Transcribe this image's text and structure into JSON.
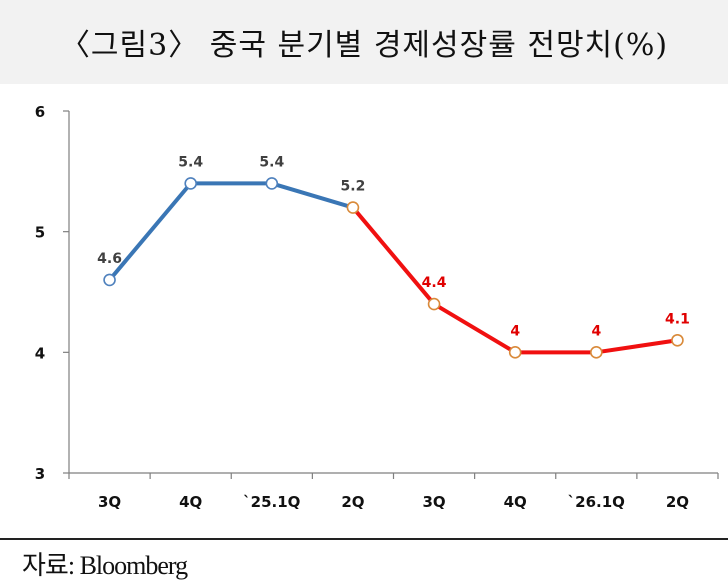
{
  "title": "〈그림3〉 중국 분기별 경제성장률 전망치(%)",
  "source": "자료: Bloomberg",
  "colors": {
    "history_line": "#3a76b5",
    "forecast_line": "#f01010",
    "history_marker": "#4f81bd",
    "forecast_marker": "#d98a3a",
    "history_label": "#404040",
    "forecast_label": "#e00000",
    "axis": "#7f7f7f"
  },
  "chart_data": {
    "type": "line",
    "categories": [
      "3Q",
      "4Q",
      "`25.1Q",
      "2Q",
      "3Q",
      "4Q",
      "`26.1Q",
      "2Q"
    ],
    "values": [
      4.6,
      5.4,
      5.4,
      5.2,
      4.4,
      4,
      4,
      4.1
    ],
    "data_labels": [
      "4.6",
      "5.4",
      "5.4",
      "5.2",
      "4.4",
      "4",
      "4",
      "4.1"
    ],
    "forecast_start_index": 3,
    "ylim": [
      3,
      6
    ],
    "yticks": [
      "3",
      "4",
      "5",
      "6"
    ],
    "title": "〈그림3〉 중국 분기별 경제성장률 전망치(%)",
    "xlabel": "",
    "ylabel": "",
    "grid": false,
    "legend": "none"
  }
}
